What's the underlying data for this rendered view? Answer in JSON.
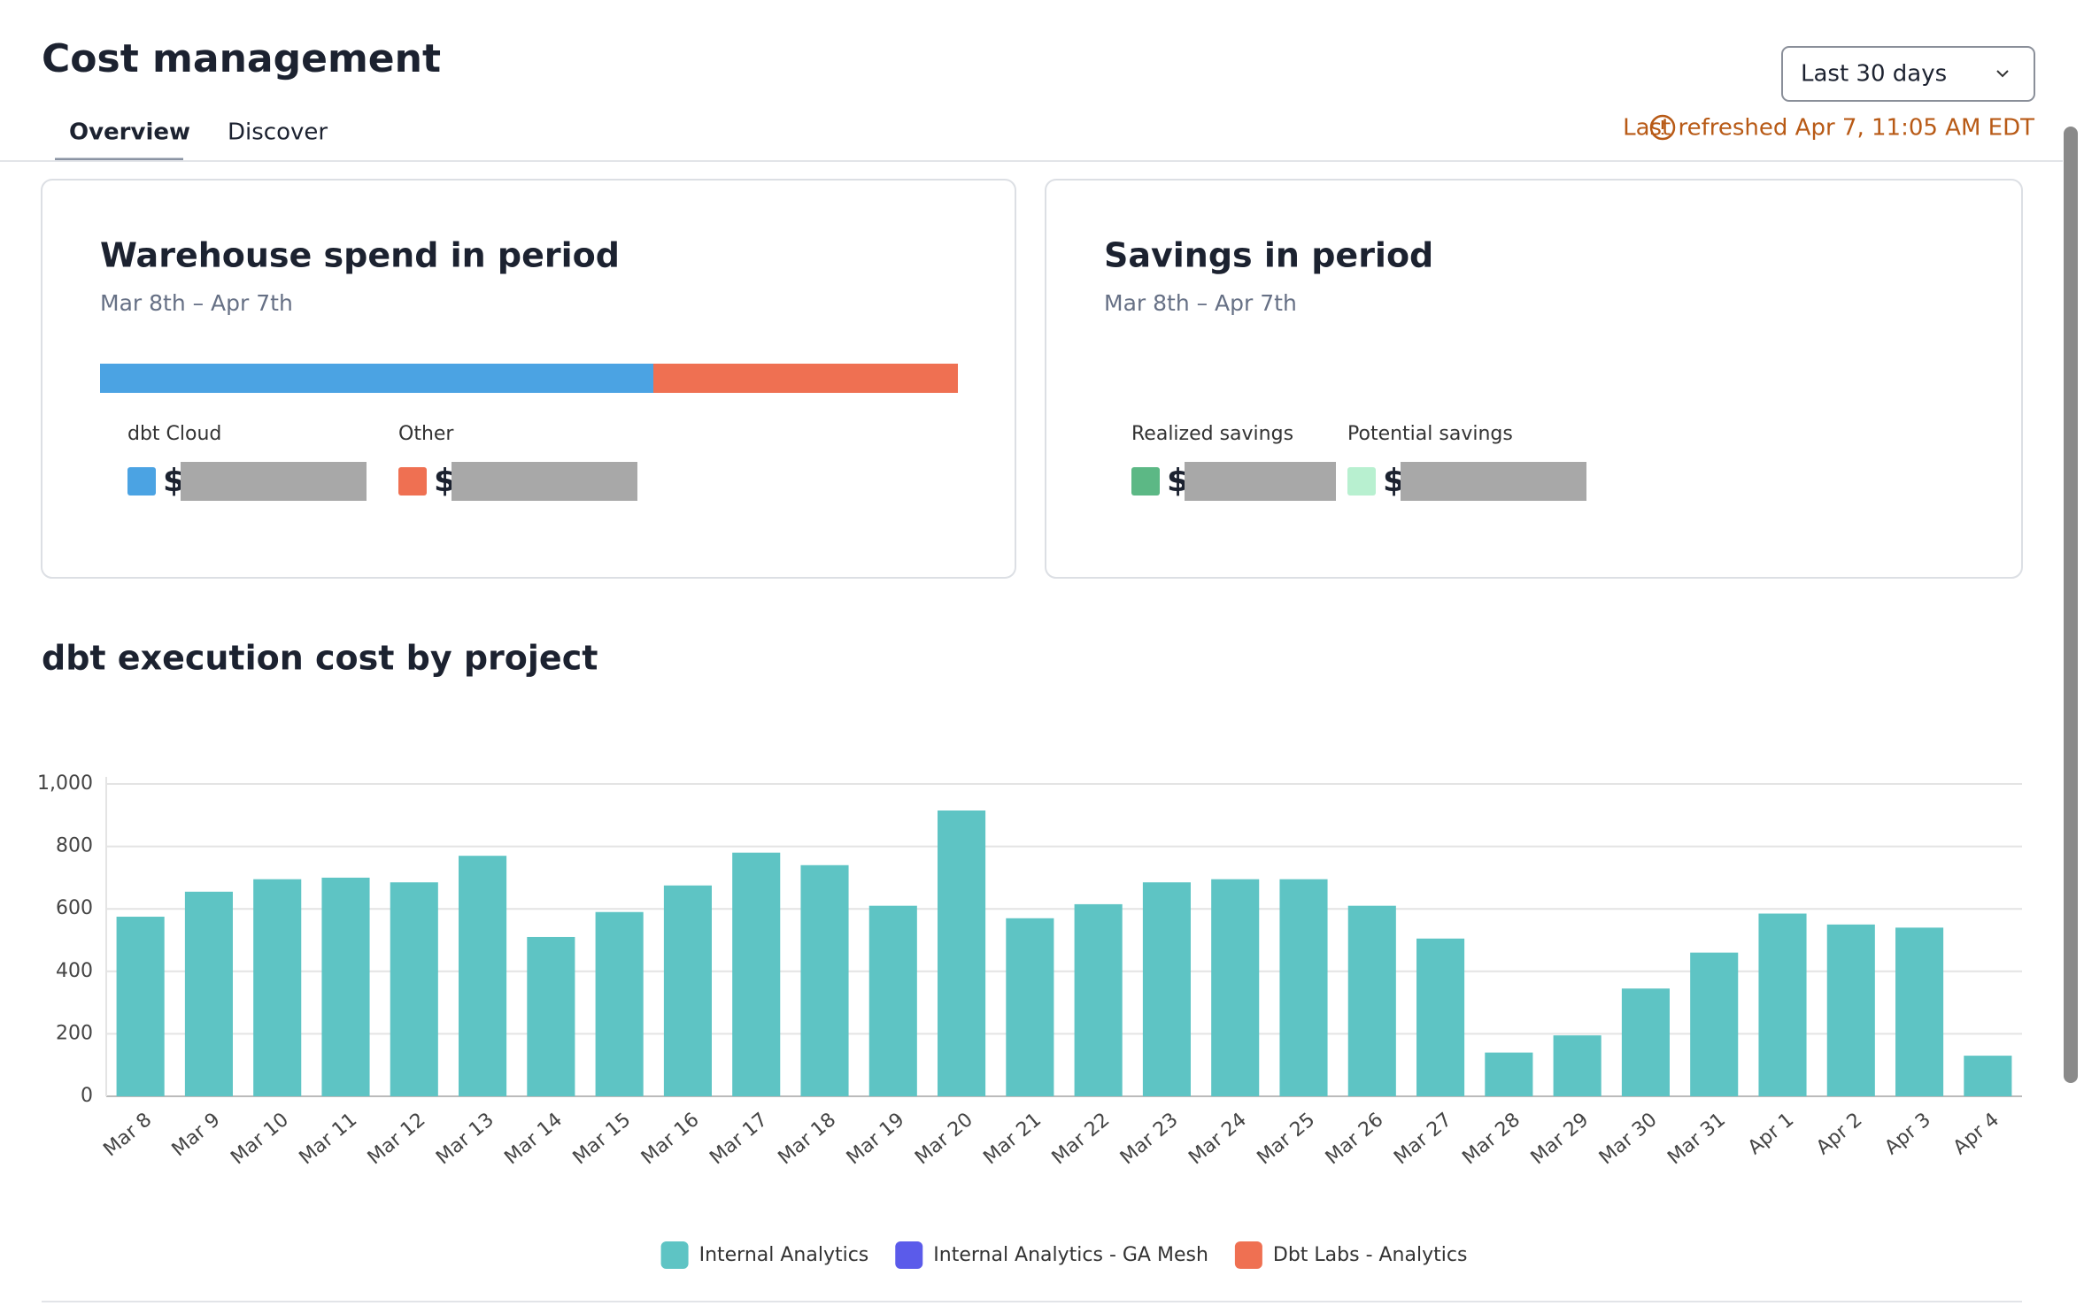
{
  "header": {
    "title": "Cost management",
    "tabs": [
      "Overview",
      "Discover"
    ],
    "period": "Last 30 days",
    "refreshed": "Last refreshed Apr 7, 11:05 AM EDT"
  },
  "cards": [
    {
      "title": "Warehouse spend in period",
      "subtitle": "Mar 8th – Apr 7th",
      "currency": "$",
      "items": [
        {
          "name": "dbt Cloud",
          "color": "#4ba3e3",
          "share": 64.5
        },
        {
          "name": "Other",
          "color": "#ef7052",
          "share": 35.5
        }
      ]
    },
    {
      "title": "Savings in period",
      "subtitle": "Mar 8th – Apr 7th",
      "currency": "$",
      "items": [
        {
          "name": "Realized savings",
          "color": "#5cb885"
        },
        {
          "name": "Potential savings",
          "color": "#b8f0d0"
        }
      ]
    }
  ],
  "chart_data": {
    "type": "bar",
    "title": "dbt execution cost by project",
    "categories": [
      "Mar 8",
      "Mar 9",
      "Mar 10",
      "Mar 11",
      "Mar 12",
      "Mar 13",
      "Mar 14",
      "Mar 15",
      "Mar 16",
      "Mar 17",
      "Mar 18",
      "Mar 19",
      "Mar 20",
      "Mar 21",
      "Mar 22",
      "Mar 23",
      "Mar 24",
      "Mar 25",
      "Mar 26",
      "Mar 27",
      "Mar 28",
      "Mar 29",
      "Mar 30",
      "Mar 31",
      "Apr 1",
      "Apr 2",
      "Apr 3",
      "Apr 4"
    ],
    "series": [
      {
        "name": "Internal Analytics",
        "color": "#5ec4c4",
        "values": [
          575,
          655,
          695,
          700,
          685,
          770,
          510,
          590,
          675,
          780,
          740,
          610,
          915,
          570,
          615,
          685,
          695,
          695,
          610,
          505,
          140,
          195,
          345,
          460,
          585,
          550,
          540,
          130
        ]
      },
      {
        "name": "Internal Analytics - GA Mesh",
        "color": "#5b5bea",
        "values": [
          0,
          0,
          0,
          0,
          0,
          0,
          0,
          0,
          0,
          0,
          0,
          0,
          0,
          0,
          0,
          0,
          0,
          0,
          0,
          0,
          0,
          0,
          0,
          0,
          0,
          0,
          0,
          0
        ]
      },
      {
        "name": "Dbt Labs - Analytics",
        "color": "#ef7052",
        "values": [
          0,
          0,
          0,
          0,
          0,
          0,
          0,
          0,
          0,
          0,
          0,
          0,
          0,
          0,
          0,
          0,
          0,
          0,
          0,
          0,
          0,
          0,
          0,
          0,
          0,
          0,
          0,
          0
        ]
      }
    ],
    "stacked": true,
    "ylim": [
      0,
      1000
    ],
    "yticks": [
      0,
      200,
      400,
      600,
      800,
      {
        "value": 1000,
        "label": "1,000"
      }
    ],
    "grid": true
  }
}
